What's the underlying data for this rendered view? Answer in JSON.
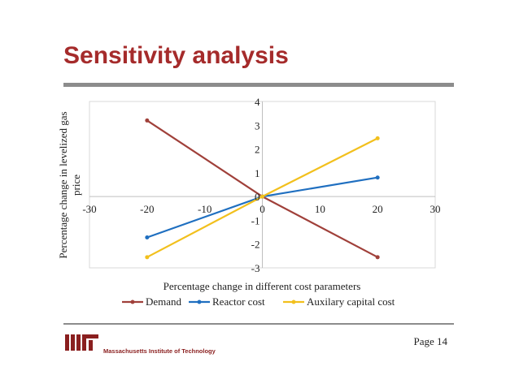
{
  "slide": {
    "title": "Sensitivity analysis",
    "page": "Page 14",
    "logo_text": "Massachusetts Institute of Technology"
  },
  "colors": {
    "title": "#a52b2b",
    "demand": "#a0403a",
    "reactor": "#1f6fc0",
    "auxilary": "#f2c01d"
  },
  "chart_data": {
    "type": "line",
    "xlabel": "Percentage change in different cost parameters",
    "ylabel": "Percentage change in levelized gas price",
    "xlim": [
      -30,
      30
    ],
    "ylim": [
      -3,
      4
    ],
    "xticks": [
      -30,
      -20,
      -10,
      0,
      10,
      20,
      30
    ],
    "yticks": [
      -3,
      -2,
      -1,
      0,
      1,
      2,
      3,
      4
    ],
    "legend_position": "bottom",
    "grid": false,
    "series": [
      {
        "name": "Demand",
        "color": "#a0403a",
        "x": [
          -20,
          0,
          20
        ],
        "y": [
          3.2,
          0,
          -2.55
        ]
      },
      {
        "name": "Reactor cost",
        "color": "#1f6fc0",
        "x": [
          -20,
          0,
          20
        ],
        "y": [
          -1.72,
          0,
          0.8
        ]
      },
      {
        "name": "Auxilary capital cost",
        "color": "#f2c01d",
        "x": [
          -20,
          0,
          20
        ],
        "y": [
          -2.55,
          0,
          2.45
        ]
      }
    ]
  }
}
